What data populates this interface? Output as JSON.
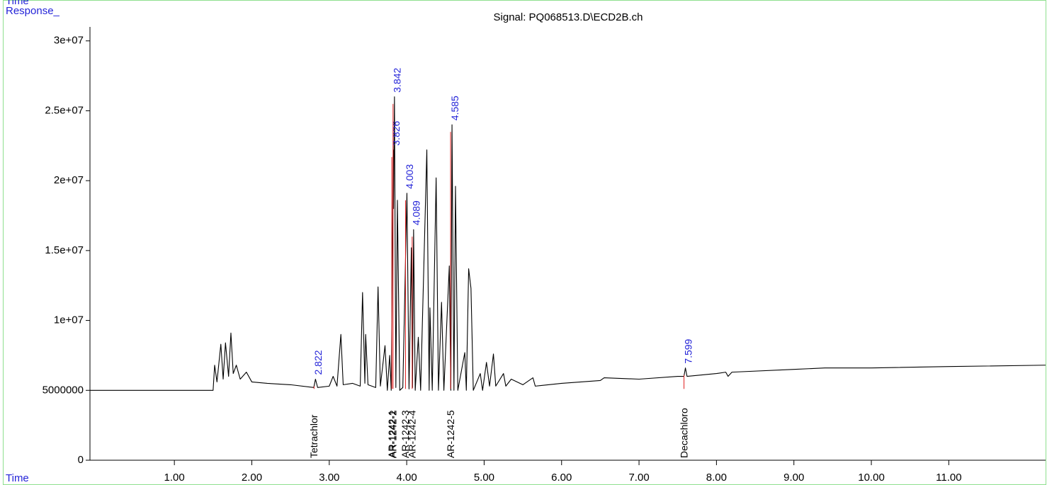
{
  "chart_data": {
    "type": "line",
    "top_label": "Time",
    "y_label": "Response_",
    "x_label": "Time",
    "title": "Signal: PQ068513.D\\ECD2B.ch",
    "xlim": [
      -0.09,
      12.25
    ],
    "ylim": [
      0,
      31000000
    ],
    "xticks": [
      {
        "value": 1,
        "label": "1.00"
      },
      {
        "value": 2,
        "label": "2.00"
      },
      {
        "value": 3,
        "label": "3.00"
      },
      {
        "value": 4,
        "label": "4.00"
      },
      {
        "value": 5,
        "label": "5.00"
      },
      {
        "value": 6,
        "label": "6.00"
      },
      {
        "value": 7,
        "label": "7.00"
      },
      {
        "value": 8,
        "label": "8.00"
      },
      {
        "value": 9,
        "label": "9.00"
      },
      {
        "value": 10,
        "label": "10.00"
      },
      {
        "value": 11,
        "label": "11.00"
      }
    ],
    "yticks": [
      0,
      5000000,
      {
        "value": 10000000,
        "label": "1e+07"
      },
      {
        "value": 15000000,
        "label": "1.5e+07"
      },
      {
        "value": 20000000,
        "label": "2e+07"
      },
      {
        "value": 25000000,
        "label": "2.5e+07"
      },
      {
        "value": 30000000,
        "label": "3e+07"
      }
    ],
    "x": [
      -0.09,
      1.5,
      1.52,
      1.55,
      1.6,
      1.63,
      1.66,
      1.7,
      1.73,
      1.76,
      1.8,
      1.85,
      1.93,
      2.0,
      2.2,
      2.5,
      2.8,
      2.822,
      2.85,
      3.0,
      3.05,
      3.1,
      3.15,
      3.18,
      3.3,
      3.4,
      3.43,
      3.46,
      3.47,
      3.5,
      3.6,
      3.63,
      3.66,
      3.72,
      3.75,
      3.78,
      3.8,
      3.826,
      3.83,
      3.842,
      3.86,
      3.88,
      3.91,
      3.95,
      4.003,
      4.03,
      4.06,
      4.075,
      4.089,
      4.11,
      4.15,
      4.18,
      4.26,
      4.29,
      4.3,
      4.33,
      4.38,
      4.41,
      4.45,
      4.48,
      4.55,
      4.57,
      4.585,
      4.61,
      4.63,
      4.66,
      4.75,
      4.77,
      4.8,
      4.83,
      4.86,
      4.95,
      4.98,
      5.03,
      5.07,
      5.12,
      5.15,
      5.25,
      5.28,
      5.35,
      5.5,
      5.63,
      5.66,
      6.0,
      6.5,
      6.55,
      7.0,
      7.5,
      7.58,
      7.599,
      7.62,
      8.0,
      8.12,
      8.15,
      8.2,
      9.0,
      9.4,
      10.0,
      11.0,
      12.25
    ],
    "series": [
      {
        "color": "#000000",
        "values": [
          5000000,
          5000000,
          6800000,
          5600000,
          8300000,
          5800000,
          8400000,
          6000000,
          9100000,
          6200000,
          6800000,
          5800000,
          6300000,
          5600000,
          5500000,
          5400000,
          5200000,
          5800000,
          5200000,
          5300000,
          6000000,
          5300000,
          9000000,
          5400000,
          5500000,
          5300000,
          12000000,
          5500000,
          9000000,
          5400000,
          5200000,
          12400000,
          5300000,
          8200000,
          5000000,
          7500000,
          5000000,
          22200000,
          18000000,
          26000000,
          5200000,
          18600000,
          5000000,
          5200000,
          19100000,
          5100000,
          15200000,
          5200000,
          16500000,
          5000000,
          8800000,
          5000000,
          22200000,
          5000000,
          10900000,
          5000000,
          20200000,
          5000000,
          11300000,
          5000000,
          13900000,
          5000000,
          24000000,
          5000000,
          19600000,
          5000000,
          7700000,
          5000000,
          13700000,
          12300000,
          5000000,
          6200000,
          5000000,
          7000000,
          5300000,
          7600000,
          5300000,
          6200000,
          5300000,
          5800000,
          5400000,
          5900000,
          5300000,
          5500000,
          5700000,
          5900000,
          5800000,
          6000000,
          6000000,
          6600000,
          6000000,
          6200000,
          6300000,
          6000000,
          6300000,
          6500000,
          6600000,
          6600000,
          6700000,
          6800000
        ]
      }
    ],
    "peaks": [
      {
        "time": 2.822,
        "height": 5800000,
        "compound": "Tetrachlor"
      },
      {
        "time": 3.826,
        "height": 22200000,
        "compound": "AR-1242-1"
      },
      {
        "time": 3.842,
        "height": 26000000,
        "compound": "AR-1242-2"
      },
      {
        "time": 4.003,
        "height": 19100000,
        "compound": "AR-1242-3"
      },
      {
        "time": 4.089,
        "height": 16500000,
        "compound": "AR-1242-4"
      },
      {
        "time": 4.585,
        "height": 24000000,
        "compound": "AR-1242-5"
      },
      {
        "time": 7.599,
        "height": 6600000,
        "compound": "Decachloro"
      }
    ]
  }
}
